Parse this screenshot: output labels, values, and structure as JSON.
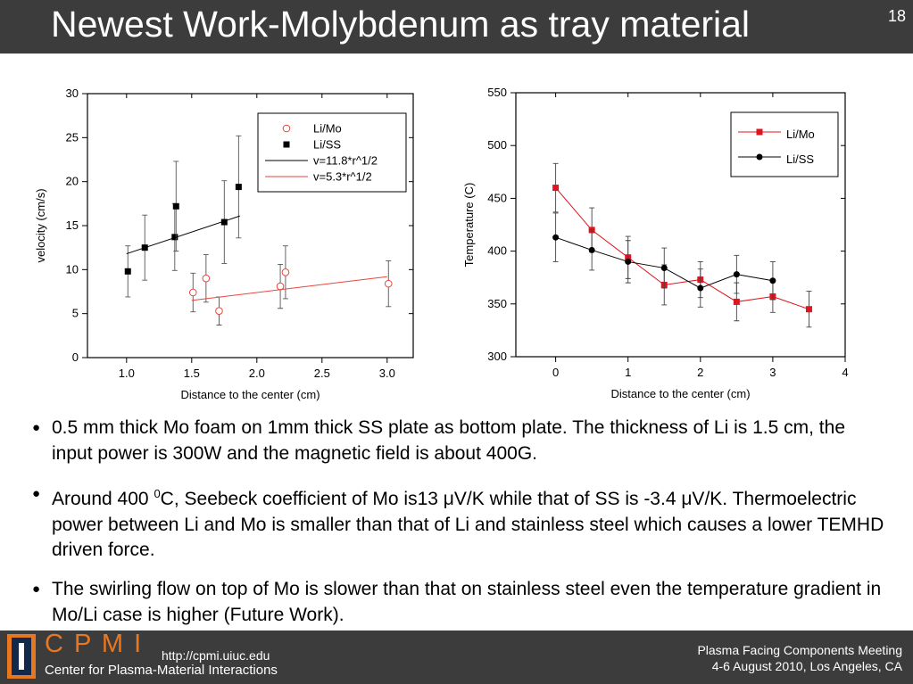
{
  "header": {
    "title": "Newest Work-Molybdenum as tray material",
    "page": "18"
  },
  "chart_data": [
    {
      "type": "scatter",
      "xlabel": "Distance to the center (cm)",
      "ylabel": "velocity (cm/s)",
      "xlim": [
        0.7,
        3.2
      ],
      "ylim": [
        0,
        30
      ],
      "xticks": [
        {
          "value": 1,
          "label": "1.0"
        },
        1.5,
        {
          "value": 2,
          "label": "2.0"
        },
        2.5,
        {
          "value": 3,
          "label": "3.0"
        }
      ],
      "yticks": [
        0,
        5,
        10,
        15,
        20,
        25,
        30
      ],
      "legend": "upper right",
      "series": [
        {
          "name": "Li/Mo",
          "color": "#e8463c",
          "mode": "markers",
          "marker": "circle-open",
          "x": [
            1.51,
            1.61,
            1.71,
            2.18,
            2.22,
            3.01
          ],
          "values": [
            7.4,
            9.0,
            5.3,
            8.1,
            9.7,
            8.4
          ],
          "errors": [
            2.2,
            2.7,
            1.6,
            2.5,
            3.0,
            2.6
          ]
        },
        {
          "name": "Li/SS",
          "color": "#000000",
          "mode": "markers",
          "marker": "square",
          "x": [
            1.01,
            1.14,
            1.37,
            1.38,
            1.75,
            1.86
          ],
          "values": [
            9.8,
            12.5,
            13.7,
            17.2,
            15.4,
            19.4
          ],
          "errors": [
            2.9,
            3.7,
            3.8,
            5.1,
            4.7,
            5.8
          ]
        },
        {
          "name": "v=11.8*r^1/2",
          "color": "#000000",
          "mode": "line",
          "x": [
            1.0,
            1.87
          ],
          "values": [
            11.8,
            16.1
          ]
        },
        {
          "name": "v=5.3*r^1/2",
          "color": "#e8463c",
          "mode": "line",
          "x": [
            1.5,
            3.0
          ],
          "values": [
            6.5,
            9.2
          ]
        }
      ]
    },
    {
      "type": "scatter",
      "xlabel": "Distance to the center (cm)",
      "ylabel": "Temperature (C)",
      "xlim": [
        -0.55,
        4
      ],
      "ylim": [
        300,
        550
      ],
      "xticks": [
        0,
        1,
        2,
        3,
        4
      ],
      "yticks": [
        300,
        350,
        400,
        450,
        500,
        550
      ],
      "legend": "upper right",
      "series": [
        {
          "name": "Li/Mo",
          "color": "#e0141e",
          "mode": "markers+line",
          "marker": "square",
          "x": [
            0,
            0.5,
            1,
            1.5,
            2,
            2.5,
            3,
            3.5
          ],
          "values": [
            460,
            420,
            394,
            368,
            373,
            352,
            357,
            345
          ],
          "errors": [
            23,
            21,
            20,
            19,
            17,
            18,
            15,
            17
          ]
        },
        {
          "name": "Li/SS",
          "color": "#000000",
          "mode": "markers+line",
          "marker": "circle",
          "x": [
            0,
            0.5,
            1,
            1.5,
            2,
            2.5,
            3
          ],
          "values": [
            413,
            401,
            390,
            384,
            365,
            378,
            372
          ],
          "errors": [
            23,
            19,
            20,
            19,
            18,
            18,
            18
          ]
        }
      ]
    }
  ],
  "bullets": [
    {
      "text": "0.5 mm thick Mo foam on 1mm thick SS plate as bottom plate. The thickness of Li is 1.5 cm, the input power is 300W and the magnetic field is about 400G."
    },
    {
      "before": "Around 400 ",
      "sup": "0",
      "after": "C, Seebeck coefficient of Mo is13 μV/K while that of SS is -3.4 μV/K. Thermoelectric power between Li and Mo is smaller than that of Li and stainless steel which causes a lower TEMHD driven force."
    },
    {
      "text": "The swirling flow on top of Mo is slower than that on stainless steel even the temperature gradient in Mo/Li case is higher (Future Work)."
    }
  ],
  "footer": {
    "logo": "C P M I",
    "url": "http://cpmi.uiuc.edu",
    "org": "Center for Plasma-Material Interactions",
    "meeting": "Plasma Facing Components Meeting",
    "date": "4-6 August 2010, Los Angeles, CA"
  }
}
